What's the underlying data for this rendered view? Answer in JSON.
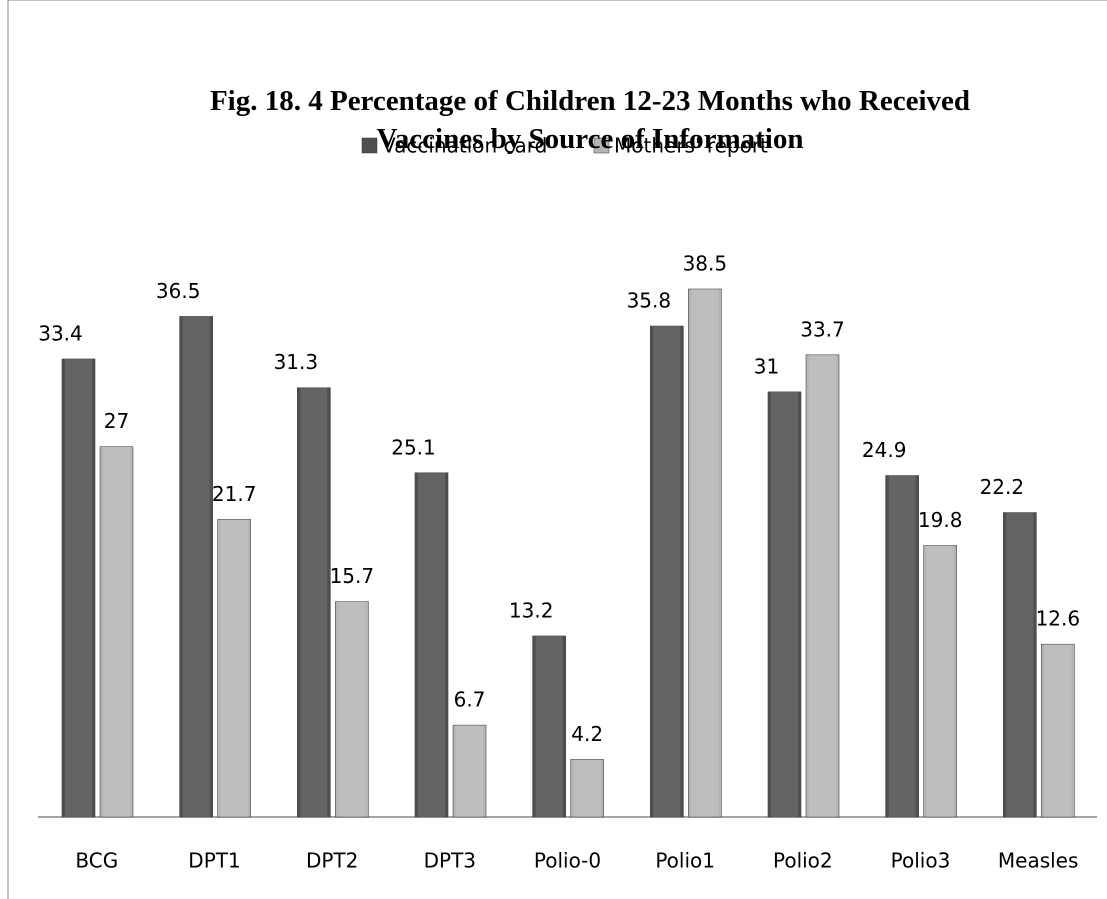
{
  "chart_data": {
    "type": "bar",
    "title": "Fig. 18. 4 Percentage of Children 12-23 Months who Received Vaccines by Source of Information",
    "categories": [
      "BCG",
      "DPT1",
      "DPT2",
      "DPT3",
      "Polio-0",
      "Polio1",
      "Polio2",
      "Polio3",
      "Measles"
    ],
    "series": [
      {
        "name": "Vaccination card",
        "color": "#4f4f4f",
        "values": [
          33.4,
          36.5,
          31.3,
          25.1,
          13.2,
          35.8,
          31,
          24.9,
          22.2
        ]
      },
      {
        "name": "Mothers' report",
        "color": "#b5b5b5",
        "values": [
          27,
          21.7,
          15.7,
          6.7,
          4.2,
          38.5,
          33.7,
          19.8,
          12.6
        ]
      }
    ],
    "legend": "top"
  }
}
